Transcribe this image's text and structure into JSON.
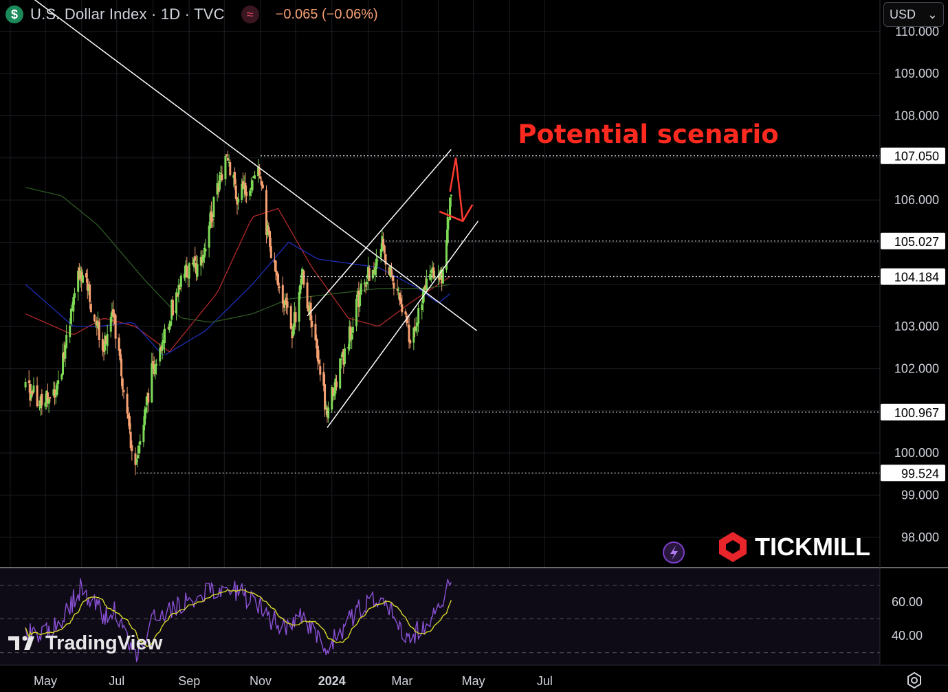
{
  "header": {
    "symbol_icon": "$",
    "title": "U.S. Dollar Index · 1D · TVC",
    "indicator_icon": "wave-icon",
    "change": "−0.065 (−0.06%)"
  },
  "currency_select": {
    "value": "USD",
    "icon": "chevron-down-icon"
  },
  "annotation": {
    "text": "Potential scenario",
    "color": "#ff2a1f"
  },
  "brand": {
    "tickmill": "TICKMILL",
    "tradingview": "TradingView"
  },
  "colors": {
    "up": "#7ed957",
    "down": "#f7a172",
    "sma_red": "#b22a2a",
    "sma_blue": "#1f2fb8",
    "sma_green": "#2f5a23",
    "rsi": "#8b52d6",
    "rsi_ma": "#d8d82b",
    "line": "#ffffff"
  },
  "chart_data": {
    "type": "candlestick",
    "symbol": "U.S. Dollar Index",
    "interval": "1D",
    "y_ticks": [
      "110.000",
      "109.000",
      "108.000",
      "107.000",
      "106.000",
      "105.000",
      "104.000",
      "103.000",
      "102.000",
      "101.000",
      "100.000",
      "99.000",
      "98.000"
    ],
    "ylim": [
      97.65,
      110.6
    ],
    "x_labels": [
      "May",
      "Jul",
      "Sep",
      "Nov",
      "2024",
      "Mar",
      "May",
      "Jul"
    ],
    "price_lines": [
      {
        "value": 107.05,
        "label": "107.050"
      },
      {
        "value": 105.027,
        "label": "105.027"
      },
      {
        "value": 104.184,
        "label": "104.184"
      },
      {
        "value": 100.967,
        "label": "100.967"
      },
      {
        "value": 99.524,
        "label": "99.524"
      }
    ],
    "close_anchors": [
      [
        "2023-04-14",
        101.6
      ],
      [
        "2023-04-25",
        101.3
      ],
      [
        "2023-05-10",
        101.3
      ],
      [
        "2023-05-31",
        104.4
      ],
      [
        "2023-06-20",
        102.5
      ],
      [
        "2023-06-28",
        103.2
      ],
      [
        "2023-07-17",
        99.6
      ],
      [
        "2023-07-31",
        101.9
      ],
      [
        "2023-08-25",
        104.1
      ],
      [
        "2023-09-11",
        104.6
      ],
      [
        "2023-10-03",
        107.1
      ],
      [
        "2023-10-12",
        106.0
      ],
      [
        "2023-10-31",
        106.7
      ],
      [
        "2023-11-07",
        105.2
      ],
      [
        "2023-11-17",
        103.8
      ],
      [
        "2023-11-28",
        102.9
      ],
      [
        "2023-12-07",
        104.2
      ],
      [
        "2023-12-28",
        100.97
      ],
      [
        "2024-01-10",
        102.2
      ],
      [
        "2024-01-23",
        103.6
      ],
      [
        "2024-02-13",
        104.96
      ],
      [
        "2024-03-08",
        102.7
      ],
      [
        "2024-03-26",
        104.4
      ],
      [
        "2024-04-04",
        104.2
      ],
      [
        "2024-04-12",
        106.2
      ]
    ],
    "rsi": {
      "ticks": [
        "60.00",
        "40.00"
      ],
      "ylim": [
        25,
        78
      ],
      "levels": [
        70,
        50,
        30
      ],
      "anchors": [
        [
          "2023-04-14",
          40
        ],
        [
          "2023-05-10",
          45
        ],
        [
          "2023-05-31",
          68
        ],
        [
          "2023-06-20",
          52
        ],
        [
          "2023-06-28",
          55
        ],
        [
          "2023-07-17",
          28
        ],
        [
          "2023-07-31",
          48
        ],
        [
          "2023-08-25",
          60
        ],
        [
          "2023-09-11",
          64
        ],
        [
          "2023-10-03",
          70
        ],
        [
          "2023-10-31",
          58
        ],
        [
          "2023-11-17",
          45
        ],
        [
          "2023-12-07",
          50
        ],
        [
          "2023-12-28",
          32
        ],
        [
          "2024-01-23",
          55
        ],
        [
          "2024-02-13",
          62
        ],
        [
          "2024-03-08",
          38
        ],
        [
          "2024-03-26",
          52
        ],
        [
          "2024-04-04",
          56
        ],
        [
          "2024-04-12",
          73
        ]
      ]
    },
    "moving_averages": [
      {
        "color_key": "sma_red",
        "anchors": [
          [
            "2023-04-14",
            103.3
          ],
          [
            "2023-05-25",
            102.8
          ],
          [
            "2023-06-20",
            103.2
          ],
          [
            "2023-07-17",
            103.0
          ],
          [
            "2023-08-15",
            102.4
          ],
          [
            "2023-09-25",
            103.8
          ],
          [
            "2023-10-25",
            105.6
          ],
          [
            "2023-11-16",
            105.8
          ],
          [
            "2023-12-15",
            104.4
          ],
          [
            "2024-01-15",
            103.2
          ],
          [
            "2024-02-10",
            103.0
          ],
          [
            "2024-03-10",
            103.6
          ],
          [
            "2024-04-12",
            104.2
          ]
        ]
      },
      {
        "color_key": "sma_blue",
        "anchors": [
          [
            "2023-04-14",
            104.0
          ],
          [
            "2023-05-25",
            103.0
          ],
          [
            "2023-06-15",
            103.0
          ],
          [
            "2023-07-15",
            103.1
          ],
          [
            "2023-08-10",
            102.3
          ],
          [
            "2023-09-15",
            102.9
          ],
          [
            "2023-10-25",
            104.0
          ],
          [
            "2023-11-25",
            105.0
          ],
          [
            "2023-12-20",
            104.6
          ],
          [
            "2024-02-10",
            104.4
          ],
          [
            "2024-03-15",
            103.9
          ],
          [
            "2024-04-01",
            103.55
          ],
          [
            "2024-04-12",
            103.8
          ]
        ]
      },
      {
        "color_key": "sma_green",
        "anchors": [
          [
            "2023-04-14",
            106.3
          ],
          [
            "2023-05-15",
            106.1
          ],
          [
            "2023-06-15",
            105.4
          ],
          [
            "2023-07-25",
            104.1
          ],
          [
            "2023-08-25",
            103.2
          ],
          [
            "2023-09-20",
            103.1
          ],
          [
            "2023-10-25",
            103.3
          ],
          [
            "2023-11-25",
            103.65
          ],
          [
            "2024-01-10",
            103.8
          ],
          [
            "2024-02-10",
            103.9
          ],
          [
            "2024-03-20",
            103.9
          ],
          [
            "2024-04-12",
            104.0
          ]
        ]
      }
    ],
    "trendlines": [
      {
        "from": [
          "2023-04-10",
          111.0
        ],
        "to": [
          "2024-05-04",
          102.9
        ]
      },
      {
        "from": [
          "2023-12-28",
          100.6
        ],
        "to": [
          "2024-05-05",
          105.5
        ]
      },
      {
        "from": [
          "2023-12-11",
          103.25
        ],
        "to": [
          "2024-04-12",
          107.2
        ]
      }
    ],
    "scenario_arrow": [
      [
        "2024-04-11",
        106.2
      ],
      [
        "2024-04-16",
        107.0
      ],
      [
        "2024-04-22",
        105.5
      ]
    ]
  }
}
